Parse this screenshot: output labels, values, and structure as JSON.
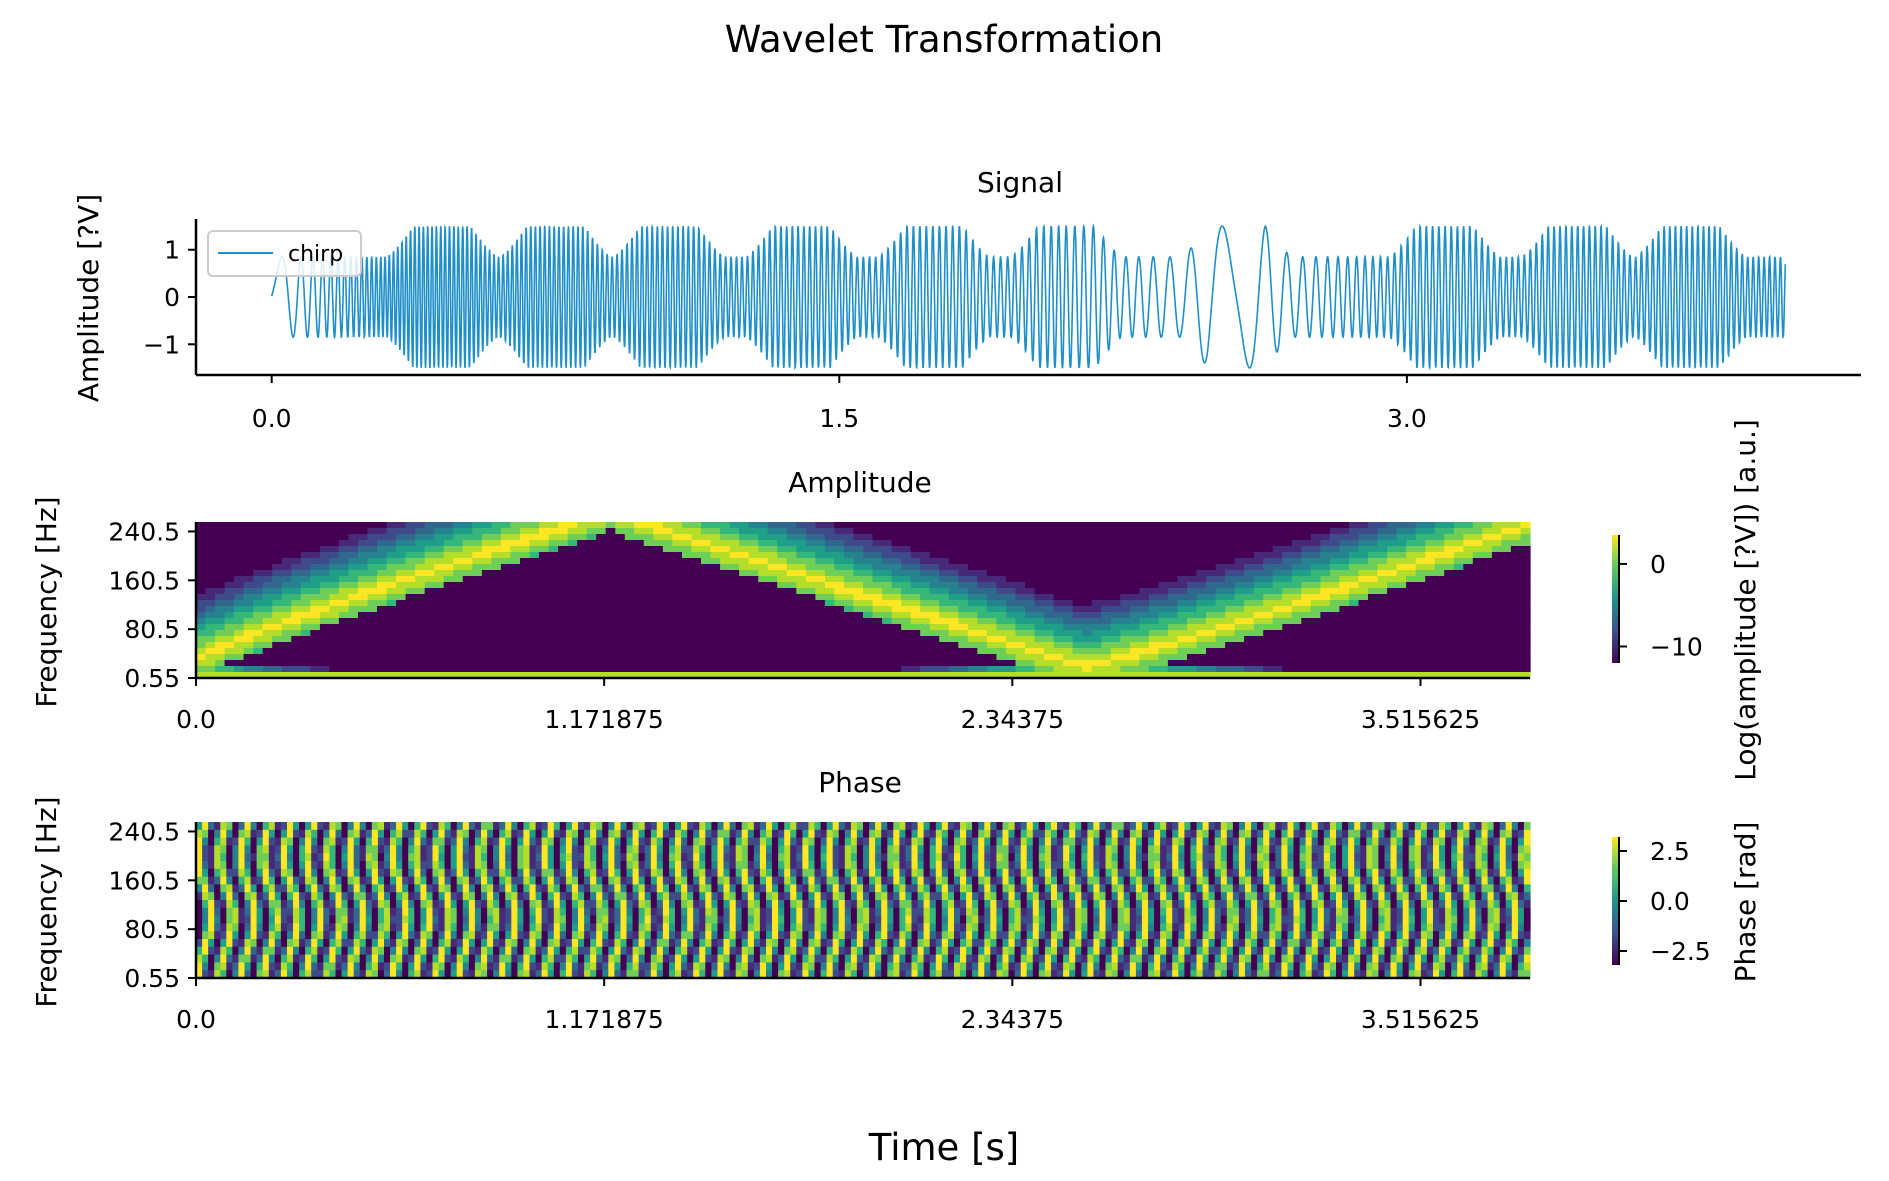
{
  "figure": {
    "suptitle": "Wavelet Transformation",
    "supxlabel": "Time [s]"
  },
  "chart_data": [
    {
      "type": "line",
      "title": "Signal",
      "xlabel": "",
      "ylabel": "Amplitude [?V]",
      "xticks": [
        "0.0",
        "1.5",
        "3.0"
      ],
      "xtick_values": [
        0.0,
        1.5,
        3.0
      ],
      "yticks": [
        "1",
        "0",
        "−1"
      ],
      "ytick_values": [
        1,
        0,
        -1
      ],
      "xlim": [
        -0.2,
        4.2
      ],
      "ylim": [
        -1.65,
        1.65
      ],
      "grid": false,
      "legend": {
        "position": "top-left",
        "entries": [
          "chirp"
        ]
      },
      "colors": {
        "line": "#1f8fc9"
      },
      "series": [
        {
          "name": "chirp",
          "signal": {
            "duration": 4.0,
            "segments": [
              {
                "t0": 0.0,
                "t1": 0.3,
                "f0": 5,
                "f1": 90
              },
              {
                "t0": 0.3,
                "t1": 1.2,
                "f0": 90,
                "f1": 70
              },
              {
                "t0": 1.2,
                "t1": 2.1,
                "f0": 70,
                "f1": 50
              },
              {
                "t0": 2.1,
                "t1": 2.55,
                "f0": 45,
                "f1": 5
              },
              {
                "t0": 2.55,
                "t1": 3.0,
                "f0": 5,
                "f1": 60
              },
              {
                "t0": 3.0,
                "t1": 4.0,
                "f0": 60,
                "f1": 70
              }
            ],
            "envelope_peaks": [
              0.45,
              0.75,
              1.05,
              1.4,
              1.75,
              2.1,
              2.55,
              3.1,
              3.45,
              3.75
            ]
          }
        }
      ]
    },
    {
      "type": "heatmap",
      "title": "Amplitude",
      "xlabel": "",
      "ylabel": "Frequency [Hz]",
      "xticks": [
        "0.0",
        "1.171875",
        "2.34375",
        "3.515625"
      ],
      "xtick_values": [
        0.0,
        1.171875,
        2.34375,
        3.515625
      ],
      "yticks": [
        "240.5",
        "160.5",
        "80.5",
        "0.55"
      ],
      "ytick_values": [
        240.5,
        160.5,
        80.5,
        0.55
      ],
      "xlim": [
        0.0,
        3.83
      ],
      "ylim": [
        0.55,
        256
      ],
      "colormap": "viridis",
      "colorbar": {
        "label": "Log(amplitude [?V]) [a.u.]",
        "ticks": [
          "0",
          "−10"
        ],
        "tick_values": [
          0,
          -10
        ],
        "range": [
          -12,
          3.5
        ]
      }
    },
    {
      "type": "heatmap",
      "title": "Phase",
      "xlabel": "",
      "ylabel": "Frequency [Hz]",
      "xticks": [
        "0.0",
        "1.171875",
        "2.34375",
        "3.515625"
      ],
      "xtick_values": [
        0.0,
        1.171875,
        2.34375,
        3.515625
      ],
      "yticks": [
        "240.5",
        "160.5",
        "80.5",
        "0.55"
      ],
      "ytick_values": [
        240.5,
        160.5,
        80.5,
        0.55
      ],
      "xlim": [
        0.0,
        3.83
      ],
      "ylim": [
        0.55,
        256
      ],
      "colormap": "viridis",
      "colorbar": {
        "label": "Phase [rad]",
        "ticks": [
          "2.5",
          "0.0",
          "−2.5"
        ],
        "tick_values": [
          2.5,
          0.0,
          -2.5
        ],
        "range": [
          -3.2,
          3.2
        ]
      }
    }
  ]
}
